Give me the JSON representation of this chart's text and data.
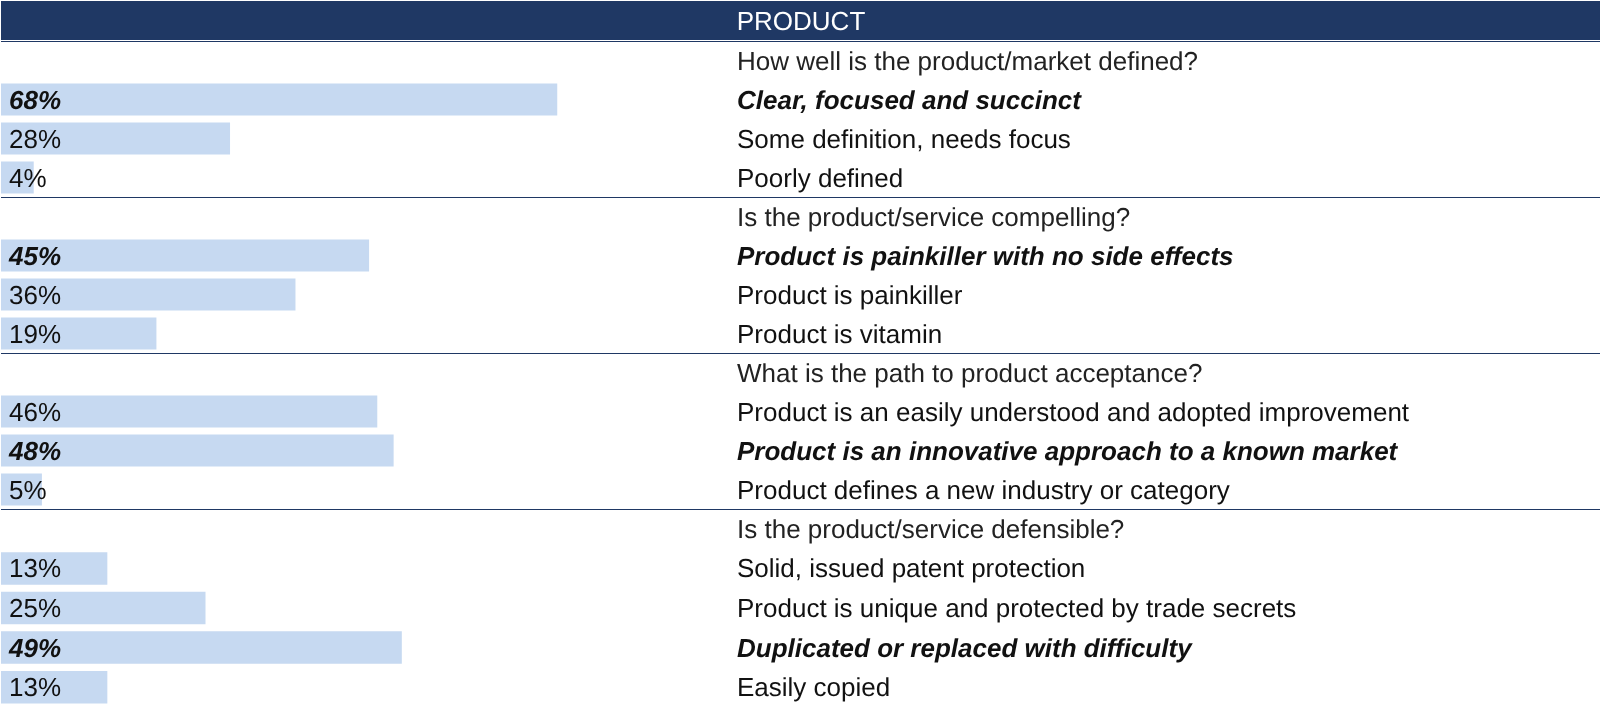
{
  "chart_data": [
    {
      "type": "other",
      "title": "PRODUCT"
    },
    {
      "type": "bar",
      "orientation": "horizontal",
      "title": "How well is the product/market defined?",
      "categories": [
        "Clear, focused and succinct",
        "Some definition, needs focus",
        "Poorly defined"
      ],
      "values": [
        68,
        28,
        4
      ],
      "value_labels": [
        "68%",
        "28%",
        "4%"
      ],
      "color": "#c6d9f1"
    },
    {
      "type": "bar",
      "orientation": "horizontal",
      "title": "Is the product/service compelling?",
      "categories": [
        "Product is painkiller with no side effects",
        "Product is painkiller",
        "Product is vitamin"
      ],
      "values": [
        45,
        36,
        19
      ],
      "value_labels": [
        "45%",
        "36%",
        "19%"
      ],
      "color": "#c6d9f1"
    },
    {
      "type": "bar",
      "orientation": "horizontal",
      "title": "What is the path to product acceptance?",
      "categories": [
        "Product is an easily understood and adopted improvement",
        "Product is an innovative approach to a known market",
        "Product defines a new industry or category"
      ],
      "values": [
        46,
        48,
        5
      ],
      "value_labels": [
        "46%",
        "48%",
        "5%"
      ],
      "color": "#c6d9f1"
    },
    {
      "type": "bar",
      "orientation": "horizontal",
      "title": "Is the product/service defensible?",
      "categories": [
        "Solid, issued patent protection",
        "Product is unique and protected by trade secrets",
        "Duplicated or replaced with difficulty",
        "Easily copied"
      ],
      "values": [
        13,
        25,
        49,
        13
      ],
      "value_labels": [
        "13%",
        "25%",
        "49%",
        "13%"
      ],
      "color": "#c6d9f1"
    }
  ]
}
